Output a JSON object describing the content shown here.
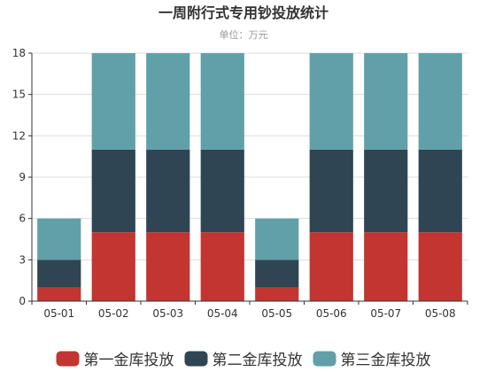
{
  "chart_data": {
    "type": "bar",
    "stacked": true,
    "title": "一周附行式专用钞投放统计",
    "subtitle": "单位：万元",
    "categories": [
      "05-01",
      "05-02",
      "05-03",
      "05-04",
      "05-05",
      "05-06",
      "05-07",
      "05-08"
    ],
    "series": [
      {
        "name": "第一金库投放",
        "color": "#c23531",
        "values": [
          1,
          5,
          5,
          5,
          1,
          5,
          5,
          5
        ]
      },
      {
        "name": "第二金库投放",
        "color": "#2f4554",
        "values": [
          2,
          6,
          6,
          6,
          2,
          6,
          6,
          6
        ]
      },
      {
        "name": "第三金库投放",
        "color": "#61a0a8",
        "values": [
          3,
          7,
          7,
          7,
          3,
          7,
          7,
          7
        ]
      }
    ],
    "ylim": [
      0,
      18
    ],
    "yticks": [
      0,
      3,
      6,
      9,
      12,
      15,
      18
    ],
    "xlabel": "",
    "ylabel": "",
    "grid": true,
    "legend_position": "bottom"
  }
}
